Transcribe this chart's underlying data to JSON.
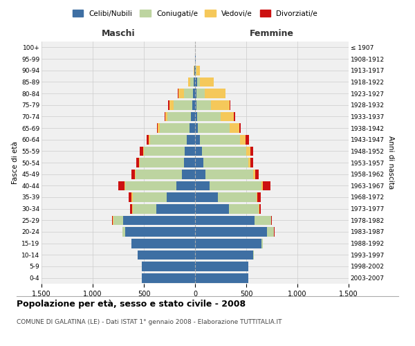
{
  "age_groups": [
    "0-4",
    "5-9",
    "10-14",
    "15-19",
    "20-24",
    "25-29",
    "30-34",
    "35-39",
    "40-44",
    "45-49",
    "50-54",
    "55-59",
    "60-64",
    "65-69",
    "70-74",
    "75-79",
    "80-84",
    "85-89",
    "90-94",
    "95-99",
    "100+"
  ],
  "birth_years": [
    "2003-2007",
    "1998-2002",
    "1993-1997",
    "1988-1992",
    "1983-1987",
    "1978-1982",
    "1973-1977",
    "1968-1972",
    "1963-1967",
    "1958-1962",
    "1953-1957",
    "1948-1952",
    "1943-1947",
    "1938-1942",
    "1933-1937",
    "1928-1932",
    "1923-1927",
    "1918-1922",
    "1913-1917",
    "1908-1912",
    "≤ 1907"
  ],
  "males": {
    "celibi": [
      520,
      520,
      560,
      620,
      680,
      700,
      380,
      280,
      180,
      130,
      110,
      100,
      80,
      55,
      40,
      30,
      20,
      15,
      5,
      2,
      0
    ],
    "coniugati": [
      0,
      0,
      0,
      5,
      30,
      100,
      230,
      330,
      500,
      450,
      430,
      400,
      360,
      290,
      230,
      180,
      90,
      30,
      5,
      0,
      0
    ],
    "vedovi": [
      0,
      0,
      0,
      0,
      0,
      5,
      5,
      10,
      10,
      10,
      10,
      10,
      10,
      20,
      20,
      40,
      55,
      20,
      5,
      0,
      0
    ],
    "divorziati": [
      0,
      0,
      0,
      0,
      0,
      5,
      20,
      30,
      60,
      30,
      25,
      30,
      20,
      10,
      10,
      15,
      5,
      0,
      0,
      0,
      0
    ]
  },
  "females": {
    "nubili": [
      520,
      520,
      570,
      650,
      700,
      580,
      330,
      220,
      140,
      100,
      80,
      70,
      50,
      30,
      20,
      15,
      15,
      20,
      10,
      5,
      0
    ],
    "coniugate": [
      0,
      0,
      5,
      15,
      70,
      160,
      290,
      380,
      510,
      470,
      440,
      430,
      390,
      310,
      230,
      140,
      80,
      30,
      5,
      0,
      0
    ],
    "vedove": [
      0,
      0,
      0,
      0,
      0,
      5,
      5,
      10,
      15,
      20,
      20,
      40,
      55,
      90,
      130,
      180,
      200,
      130,
      30,
      5,
      0
    ],
    "divorziate": [
      0,
      0,
      0,
      0,
      5,
      5,
      15,
      30,
      70,
      30,
      25,
      30,
      30,
      15,
      10,
      10,
      0,
      0,
      0,
      0,
      0
    ]
  },
  "colors": {
    "celibi": "#3e6fa3",
    "coniugati": "#bdd4a0",
    "vedovi": "#f5c85a",
    "divorziati": "#cc1111"
  },
  "xlim": 1500,
  "title": "Popolazione per età, sesso e stato civile - 2008",
  "subtitle": "COMUNE DI GALATINA (LE) - Dati ISTAT 1° gennaio 2008 - Elaborazione TUTTITALIA.IT",
  "xlabel_left": "Maschi",
  "xlabel_right": "Femmine",
  "ylabel_left": "Fasce di età",
  "ylabel_right": "Anni di nascita",
  "legend_labels": [
    "Celibi/Nubili",
    "Coniugati/e",
    "Vedovi/e",
    "Divorziati/e"
  ],
  "background_color": "#ffffff",
  "grid_color": "#cccccc"
}
